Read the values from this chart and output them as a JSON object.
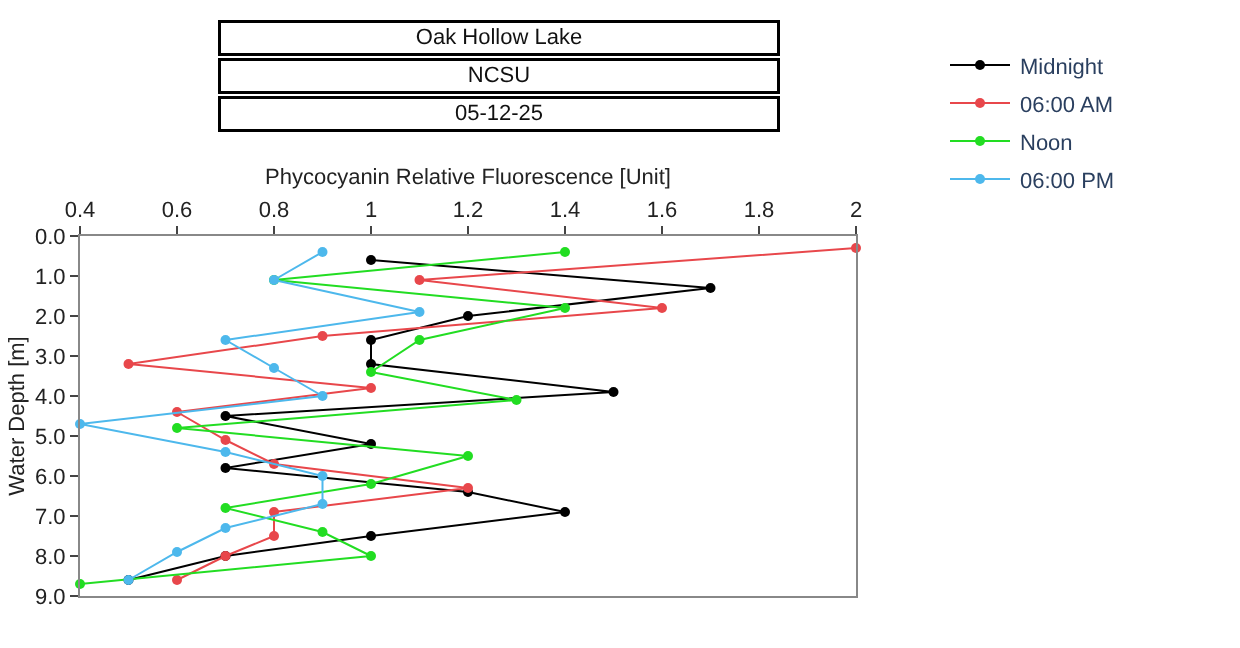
{
  "chart_data": {
    "type": "line",
    "title": "Oak Hollow Lake",
    "subtitle": "NCSU",
    "annotations": [
      "05-12-25"
    ],
    "xlabel": "Phycocyanin Relative Fluorescence [Unit]",
    "ylabel": "Water Depth [m]",
    "xlim": [
      0.4,
      2
    ],
    "xticks": [
      0.4,
      0.6,
      0.8,
      1,
      1.2,
      1.4,
      1.6,
      1.8,
      2
    ],
    "ylim": [
      9.0,
      0.0
    ],
    "yticks": [
      {
        "value": 0,
        "label": "0.0"
      },
      {
        "value": 1,
        "label": "1.0"
      },
      {
        "value": 2,
        "label": "2.0"
      },
      {
        "value": 3,
        "label": "3.0"
      },
      {
        "value": 4,
        "label": "4.0"
      },
      {
        "value": 5,
        "label": "5.0"
      },
      {
        "value": 6,
        "label": "6.0"
      },
      {
        "value": 7,
        "label": "7.0"
      },
      {
        "value": 8,
        "label": "8.0"
      },
      {
        "value": 9,
        "label": "9.0"
      }
    ],
    "legend": "top right",
    "marker": "circle",
    "line_style": "solid",
    "series": [
      {
        "name": "Midnight",
        "color": "#000000",
        "x": [
          1.0,
          1.7,
          1.2,
          1.0,
          1.0,
          1.5,
          0.7,
          1.0,
          0.7,
          1.2,
          1.4,
          1.0,
          0.7,
          0.5
        ],
        "values": [
          0.6,
          1.3,
          2.0,
          2.6,
          3.2,
          3.9,
          4.5,
          5.2,
          5.8,
          6.4,
          6.9,
          7.5,
          8.0,
          8.6
        ]
      },
      {
        "name": "06:00 AM",
        "color": "#e8474b",
        "x": [
          2.0,
          1.1,
          1.6,
          0.9,
          0.5,
          1.0,
          0.6,
          0.7,
          0.8,
          1.2,
          0.8,
          0.8,
          0.7,
          0.6
        ],
        "values": [
          0.3,
          1.1,
          1.8,
          2.5,
          3.2,
          3.8,
          4.4,
          5.1,
          5.7,
          6.3,
          6.9,
          7.5,
          8.0,
          8.6
        ]
      },
      {
        "name": "Noon",
        "color": "#22dd22",
        "x": [
          1.4,
          0.8,
          1.4,
          1.1,
          1.0,
          1.3,
          0.6,
          1.2,
          1.0,
          0.7,
          0.9,
          1.0,
          0.4
        ],
        "values": [
          0.4,
          1.1,
          1.8,
          2.6,
          3.4,
          4.1,
          4.8,
          5.5,
          6.2,
          6.8,
          7.4,
          8.0,
          8.7
        ]
      },
      {
        "name": "06:00 PM",
        "color": "#4db8ec",
        "x": [
          0.9,
          0.8,
          1.1,
          0.7,
          0.8,
          0.9,
          0.4,
          0.7,
          0.9,
          0.9,
          0.7,
          0.6,
          0.5
        ],
        "values": [
          0.4,
          1.1,
          1.9,
          2.6,
          3.3,
          4.0,
          4.7,
          5.4,
          6.0,
          6.7,
          7.3,
          7.9,
          8.6
        ]
      }
    ]
  }
}
